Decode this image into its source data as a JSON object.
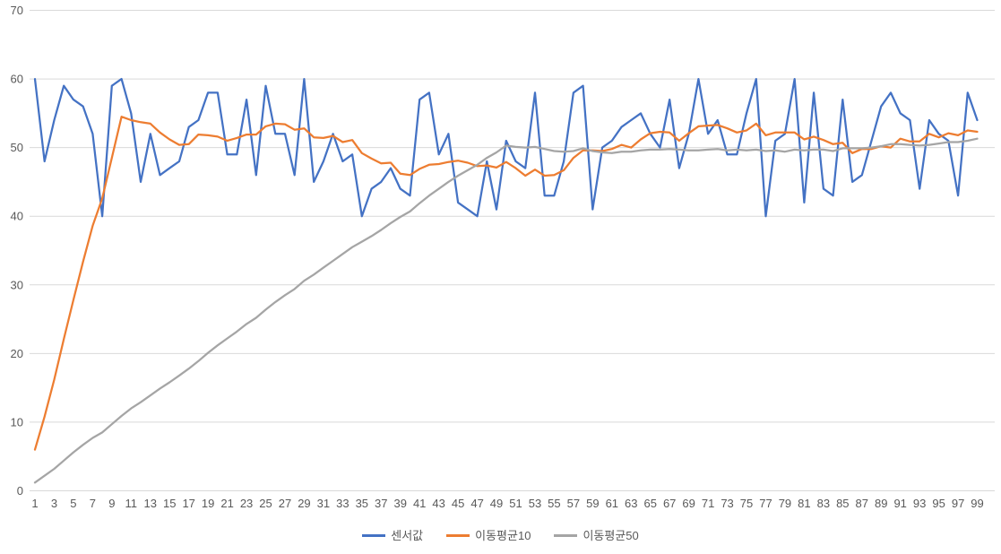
{
  "chart_data": {
    "type": "line",
    "title": "",
    "xlabel": "",
    "ylabel": "",
    "ylim": [
      0,
      70
    ],
    "yticks": [
      0,
      10,
      20,
      30,
      40,
      50,
      60,
      70
    ],
    "xtick_labels": [
      1,
      3,
      5,
      7,
      9,
      11,
      13,
      15,
      17,
      19,
      21,
      23,
      25,
      27,
      29,
      31,
      33,
      35,
      37,
      39,
      41,
      43,
      45,
      47,
      49,
      51,
      53,
      55,
      57,
      59,
      61,
      63,
      65,
      67,
      69,
      71,
      73,
      75,
      77,
      79,
      81,
      83,
      85,
      87,
      89,
      91,
      93,
      95,
      97,
      99
    ],
    "x": [
      1,
      2,
      3,
      4,
      5,
      6,
      7,
      8,
      9,
      10,
      11,
      12,
      13,
      14,
      15,
      16,
      17,
      18,
      19,
      20,
      21,
      22,
      23,
      24,
      25,
      26,
      27,
      28,
      29,
      30,
      31,
      32,
      33,
      34,
      35,
      36,
      37,
      38,
      39,
      40,
      41,
      42,
      43,
      44,
      45,
      46,
      47,
      48,
      49,
      50,
      51,
      52,
      53,
      54,
      55,
      56,
      57,
      58,
      59,
      60,
      61,
      62,
      63,
      64,
      65,
      66,
      67,
      68,
      69,
      70,
      71,
      72,
      73,
      74,
      75,
      76,
      77,
      78,
      79,
      80,
      81,
      82,
      83,
      84,
      85,
      86,
      87,
      88,
      89,
      90,
      91,
      92,
      93,
      94,
      95,
      96,
      97,
      98,
      99
    ],
    "grid": "horizontal",
    "gridline_color": "#D9D9D9",
    "axis_label_color": "#595959",
    "background": "#FFFFFF",
    "legend_position": "bottom",
    "series": [
      {
        "name": "센서값",
        "color": "#4472C4",
        "stroke_width": 2.25,
        "values": [
          60,
          48,
          54,
          59,
          57,
          56,
          52,
          40,
          59,
          60,
          55,
          45,
          52,
          46,
          47,
          48,
          53,
          54,
          58,
          58,
          49,
          49,
          57,
          46,
          59,
          52,
          52,
          46,
          60,
          45,
          48,
          52,
          48,
          49,
          40,
          44,
          45,
          47,
          44,
          43,
          57,
          58,
          49,
          52,
          42,
          41,
          40,
          48,
          41,
          51,
          48,
          47,
          58,
          43,
          43,
          48,
          58,
          59,
          41,
          50,
          51,
          53,
          54,
          55,
          52,
          50,
          57,
          47,
          52,
          60,
          52,
          54,
          49,
          49,
          55,
          60,
          40,
          51,
          52,
          60,
          42,
          58,
          44,
          43,
          57,
          45,
          46,
          51,
          56,
          58,
          55,
          54,
          44,
          54,
          52,
          51,
          43,
          58,
          54
        ]
      },
      {
        "name": "이동평균10",
        "color": "#ED7D31",
        "stroke_width": 2.25,
        "values": [
          6,
          10.8,
          16.2,
          22.1,
          27.8,
          33.4,
          38.6,
          42.6,
          48.5,
          54.5,
          54,
          53.7,
          53.5,
          52.2,
          51.2,
          50.4,
          50.5,
          51.9,
          51.8,
          51.6,
          51,
          51.4,
          51.9,
          51.9,
          53.1,
          53.5,
          53.4,
          52.6,
          52.8,
          51.5,
          51.4,
          51.7,
          50.8,
          51.1,
          49.2,
          48.4,
          47.7,
          47.8,
          46.2,
          46,
          46.9,
          47.5,
          47.6,
          47.9,
          48.1,
          47.8,
          47.3,
          47.4,
          47.1,
          47.9,
          47,
          45.9,
          46.8,
          45.9,
          46,
          46.7,
          48.5,
          49.6,
          49.6,
          49.5,
          49.8,
          50.4,
          50,
          51.2,
          52.1,
          52.3,
          52.2,
          51,
          52.1,
          53.1,
          53.2,
          53.3,
          52.8,
          52.2,
          52.5,
          53.5,
          51.8,
          52.2,
          52.2,
          52.2,
          51.2,
          51.6,
          51.1,
          50.5,
          50.7,
          49.2,
          49.8,
          49.8,
          50.2,
          50,
          51.3,
          50.9,
          50.9,
          52,
          51.5,
          52.1,
          51.8,
          52.5,
          52.3
        ]
      },
      {
        "name": "이동평균50",
        "color": "#A5A5A5",
        "stroke_width": 2.25,
        "values": [
          1.2,
          2.2,
          3.2,
          4.4,
          5.6,
          6.7,
          7.7,
          8.5,
          9.7,
          10.9,
          12,
          12.9,
          13.9,
          14.9,
          15.8,
          16.8,
          17.8,
          18.9,
          20.1,
          21.2,
          22.2,
          23.2,
          24.3,
          25.2,
          26.4,
          27.5,
          28.5,
          29.4,
          30.6,
          31.5,
          32.5,
          33.5,
          34.5,
          35.5,
          36.3,
          37.1,
          38,
          39,
          39.9,
          40.7,
          41.9,
          43,
          44,
          45,
          45.9,
          46.7,
          47.5,
          48.5,
          49.3,
          50.3,
          50.1,
          50,
          50.1,
          49.8,
          49.5,
          49.4,
          49.5,
          49.9,
          49.5,
          49.3,
          49.2,
          49.4,
          49.4,
          49.6,
          49.7,
          49.7,
          49.8,
          49.7,
          49.6,
          49.6,
          49.7,
          49.8,
          49.6,
          49.7,
          49.6,
          49.7,
          49.5,
          49.6,
          49.4,
          49.7,
          49.6,
          49.7,
          49.7,
          49.5,
          49.9,
          49.9,
          49.9,
          50,
          50.2,
          50.5,
          50.5,
          50.4,
          50.3,
          50.4,
          50.6,
          50.8,
          50.8,
          51,
          51.3
        ]
      }
    ]
  },
  "legend": {
    "items": [
      {
        "label": "센서값",
        "color": "#4472C4"
      },
      {
        "label": "이동평균10",
        "color": "#ED7D31"
      },
      {
        "label": "이동평균50",
        "color": "#A5A5A5"
      }
    ]
  }
}
